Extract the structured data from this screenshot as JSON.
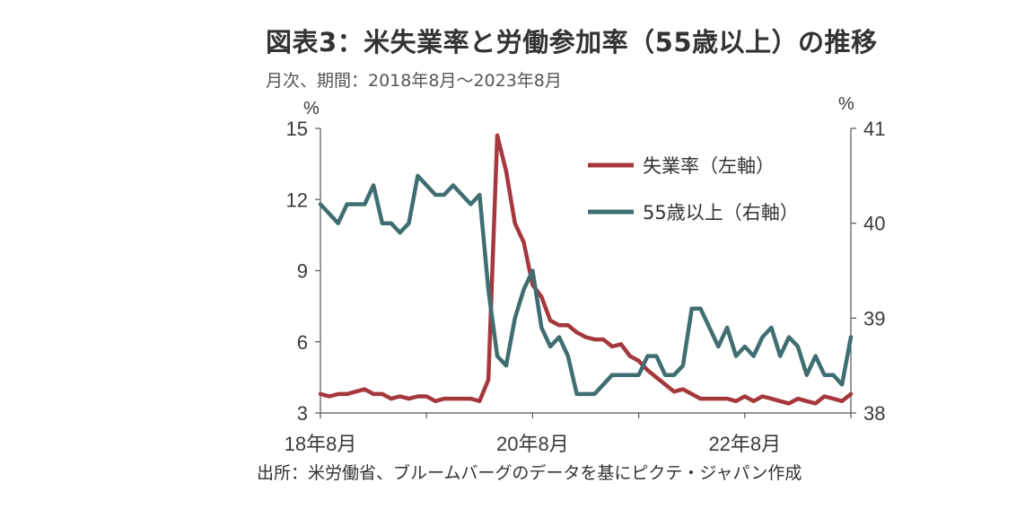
{
  "title": "図表3：米失業率と労働参加率（55歳以上）の推移",
  "subtitle": "月次、期間：2018年8月～2023年8月",
  "source": "出所：米労働省、ブルームバーグのデータを基にピクテ・ジャパン作成",
  "colors": {
    "unemployment": "#A5383D",
    "participation": "#3F6E72",
    "axis": "#555555"
  },
  "chart_data": {
    "type": "line",
    "x": [
      "2018-08",
      "2018-09",
      "2018-10",
      "2018-11",
      "2018-12",
      "2019-01",
      "2019-02",
      "2019-03",
      "2019-04",
      "2019-05",
      "2019-06",
      "2019-07",
      "2019-08",
      "2019-09",
      "2019-10",
      "2019-11",
      "2019-12",
      "2020-01",
      "2020-02",
      "2020-03",
      "2020-04",
      "2020-05",
      "2020-06",
      "2020-07",
      "2020-08",
      "2020-09",
      "2020-10",
      "2020-11",
      "2020-12",
      "2021-01",
      "2021-02",
      "2021-03",
      "2021-04",
      "2021-05",
      "2021-06",
      "2021-07",
      "2021-08",
      "2021-09",
      "2021-10",
      "2021-11",
      "2021-12",
      "2022-01",
      "2022-02",
      "2022-03",
      "2022-04",
      "2022-05",
      "2022-06",
      "2022-07",
      "2022-08",
      "2022-09",
      "2022-10",
      "2022-11",
      "2022-12",
      "2023-01",
      "2023-02",
      "2023-03",
      "2023-04",
      "2023-05",
      "2023-06",
      "2023-07",
      "2023-08"
    ],
    "x_tick_labels": [
      "18年8月",
      "20年8月",
      "22年8月"
    ],
    "x_tick_index": [
      0,
      24,
      48
    ],
    "series": [
      {
        "name": "失業率（左軸）",
        "axis": "left",
        "values": [
          3.8,
          3.7,
          3.8,
          3.8,
          3.9,
          4.0,
          3.8,
          3.8,
          3.6,
          3.7,
          3.6,
          3.7,
          3.7,
          3.5,
          3.6,
          3.6,
          3.6,
          3.6,
          3.5,
          4.4,
          14.7,
          13.2,
          11.0,
          10.2,
          8.4,
          7.9,
          6.9,
          6.7,
          6.7,
          6.4,
          6.2,
          6.1,
          6.1,
          5.8,
          5.9,
          5.4,
          5.2,
          4.8,
          4.5,
          4.2,
          3.9,
          4.0,
          3.8,
          3.6,
          3.6,
          3.6,
          3.6,
          3.5,
          3.7,
          3.5,
          3.7,
          3.6,
          3.5,
          3.4,
          3.6,
          3.5,
          3.4,
          3.7,
          3.6,
          3.5,
          3.8
        ]
      },
      {
        "name": "55歳以上（右軸）",
        "axis": "right",
        "values": [
          40.2,
          40.1,
          40.0,
          40.2,
          40.2,
          40.2,
          40.4,
          40.0,
          40.0,
          39.9,
          40.0,
          40.5,
          40.4,
          40.3,
          40.3,
          40.4,
          40.3,
          40.2,
          40.3,
          39.3,
          38.6,
          38.5,
          39.0,
          39.3,
          39.5,
          38.9,
          38.7,
          38.8,
          38.6,
          38.2,
          38.2,
          38.2,
          38.3,
          38.4,
          38.4,
          38.4,
          38.4,
          38.6,
          38.6,
          38.4,
          38.4,
          38.5,
          39.1,
          39.1,
          38.9,
          38.7,
          38.9,
          38.6,
          38.7,
          38.6,
          38.8,
          38.9,
          38.6,
          38.8,
          38.7,
          38.4,
          38.6,
          38.4,
          38.4,
          38.3,
          38.8
        ]
      }
    ],
    "ylabel_left": "%",
    "ylabel_right": "%",
    "ylim_left": [
      3,
      15
    ],
    "yticks_left": [
      3,
      6,
      9,
      12,
      15
    ],
    "ylim_right": [
      38,
      41
    ],
    "yticks_right": [
      38,
      39,
      40,
      41
    ],
    "grid": false,
    "legend_position": "top-right"
  }
}
